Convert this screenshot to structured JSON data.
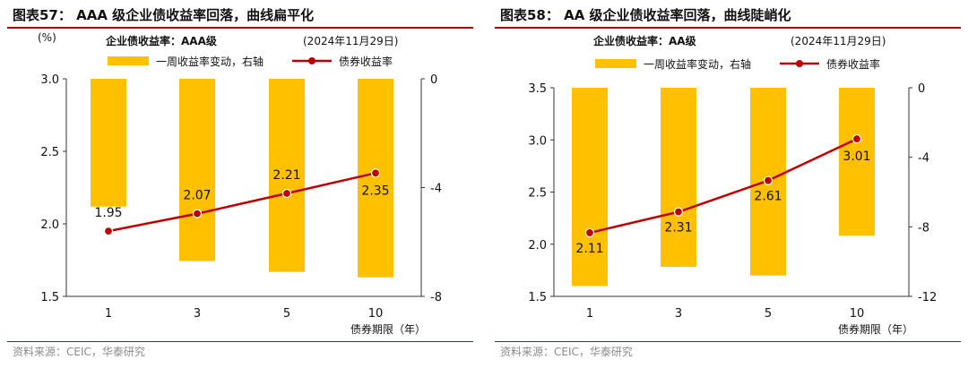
{
  "charts": [
    {
      "title": "图表57：  AAA 级企业债收益率回落，曲线扁平化",
      "source": "资料来源：CEIC，华泰研究",
      "y_left_unit": "(%)",
      "series_label": "企业债收益率：AAA级",
      "date_label": "(2024年11月29日)",
      "legend": {
        "bar": "一周收益率变动，右轴",
        "line": "债券收益率"
      },
      "x_axis_title": "债券期限（年）",
      "colors": {
        "bar": "#FFC000",
        "line": "#C00000"
      }
    },
    {
      "title": "图表58：  AA 级企业债收益率回落，曲线陡峭化",
      "source": "资料来源：CEIC，华泰研究",
      "y_left_unit": "",
      "series_label": "企业债收益率：AA级",
      "date_label": "(2024年11月29日)",
      "legend": {
        "bar": "一周收益率变动，右轴",
        "line": "债券收益率"
      },
      "x_axis_title": "债券期限（年）",
      "colors": {
        "bar": "#FFC000",
        "line": "#C00000"
      }
    }
  ],
  "chart_data": [
    {
      "type": "bar",
      "categories": [
        "1",
        "3",
        "5",
        "10"
      ],
      "series": [
        {
          "name": "一周收益率变动，右轴",
          "axis": "right",
          "type": "bar",
          "values": [
            -4.7,
            -6.7,
            -7.1,
            -7.3
          ]
        },
        {
          "name": "债券收益率",
          "axis": "left",
          "type": "line",
          "values": [
            1.95,
            2.07,
            2.21,
            2.35
          ]
        }
      ],
      "data_labels": [
        "1.95",
        "2.07",
        "2.21",
        "2.35"
      ],
      "ylim_left": [
        1.5,
        3.0
      ],
      "yticks_left": [
        "3.0",
        "2.5",
        "2.0",
        "1.5"
      ],
      "ylim_right": [
        -8,
        0
      ],
      "yticks_right": [
        "0",
        "-4",
        "-8"
      ],
      "grid": false,
      "legend_position": "top"
    },
    {
      "type": "bar",
      "categories": [
        "1",
        "3",
        "5",
        "10"
      ],
      "series": [
        {
          "name": "一周收益率变动，右轴",
          "axis": "right",
          "type": "bar",
          "values": [
            -11.4,
            -10.3,
            -10.8,
            -8.5
          ]
        },
        {
          "name": "债券收益率",
          "axis": "left",
          "type": "line",
          "values": [
            2.11,
            2.31,
            2.61,
            3.01
          ]
        }
      ],
      "data_labels": [
        "2.11",
        "2.31",
        "2.61",
        "3.01"
      ],
      "ylim_left": [
        1.5,
        3.5
      ],
      "yticks_left": [
        "3.5",
        "3.0",
        "2.5",
        "2.0",
        "1.5"
      ],
      "ylim_right": [
        -12,
        0
      ],
      "yticks_right": [
        "0",
        "-4",
        "-8",
        "-12"
      ],
      "grid": false,
      "legend_position": "top"
    }
  ]
}
